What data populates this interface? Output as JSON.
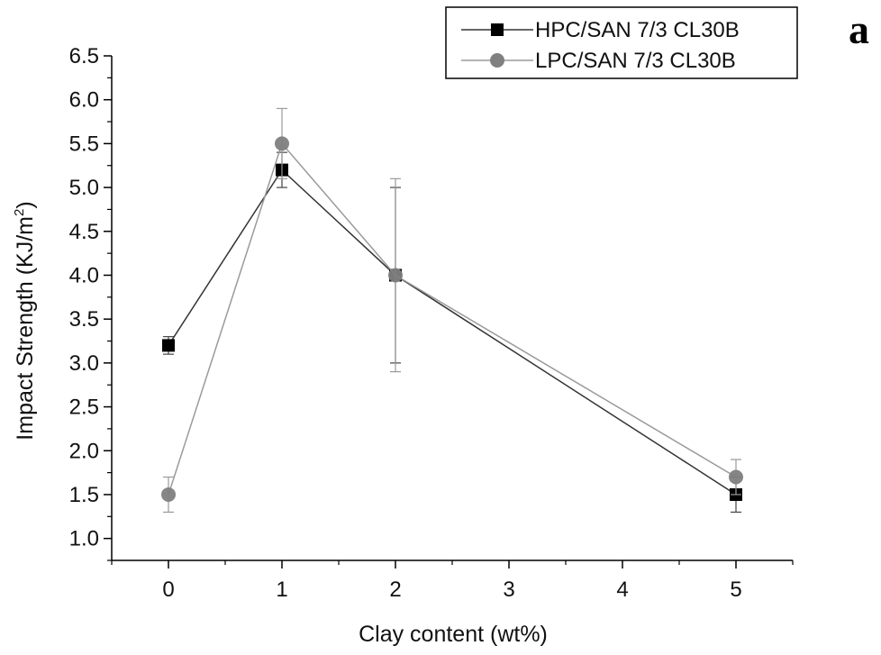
{
  "chart_data": {
    "type": "line",
    "panel_label": "a",
    "xlabel": "Clay content (wt%)",
    "ylabel": "Impact Strength (KJ/m",
    "ylabel_superscript": "2",
    "ylabel_close": ")",
    "xlim": [
      -0.5,
      5.5
    ],
    "ylim": [
      0.75,
      6.5
    ],
    "xticks": [
      0,
      1,
      2,
      3,
      4,
      5
    ],
    "xtick_labels": [
      "0",
      "1",
      "2",
      "3",
      "4",
      "5"
    ],
    "yticks": [
      1.0,
      1.5,
      2.0,
      2.5,
      3.0,
      3.5,
      4.0,
      4.5,
      5.0,
      5.5,
      6.0,
      6.5
    ],
    "ytick_labels": [
      "1.0",
      "1.5",
      "2.0",
      "2.5",
      "3.0",
      "3.5",
      "4.0",
      "4.5",
      "5.0",
      "5.5",
      "6.0",
      "6.5"
    ],
    "grid": false,
    "legend_position": "top-right",
    "series": [
      {
        "name": "HPC/SAN 7/3 CL30B",
        "marker": "square",
        "color": "#000000",
        "line_color": "#333333",
        "x": [
          0,
          1,
          2,
          5
        ],
        "y": [
          3.2,
          5.2,
          4.0,
          1.5
        ],
        "error": [
          0.1,
          0.2,
          1.0,
          0.2
        ]
      },
      {
        "name": "LPC/SAN 7/3 CL30B",
        "marker": "circle",
        "color": "#808080",
        "line_color": "#9a9a9a",
        "x": [
          0,
          1,
          2,
          5
        ],
        "y": [
          1.5,
          5.5,
          4.0,
          1.7
        ],
        "error": [
          0.2,
          0.4,
          1.1,
          0.2
        ]
      }
    ]
  }
}
